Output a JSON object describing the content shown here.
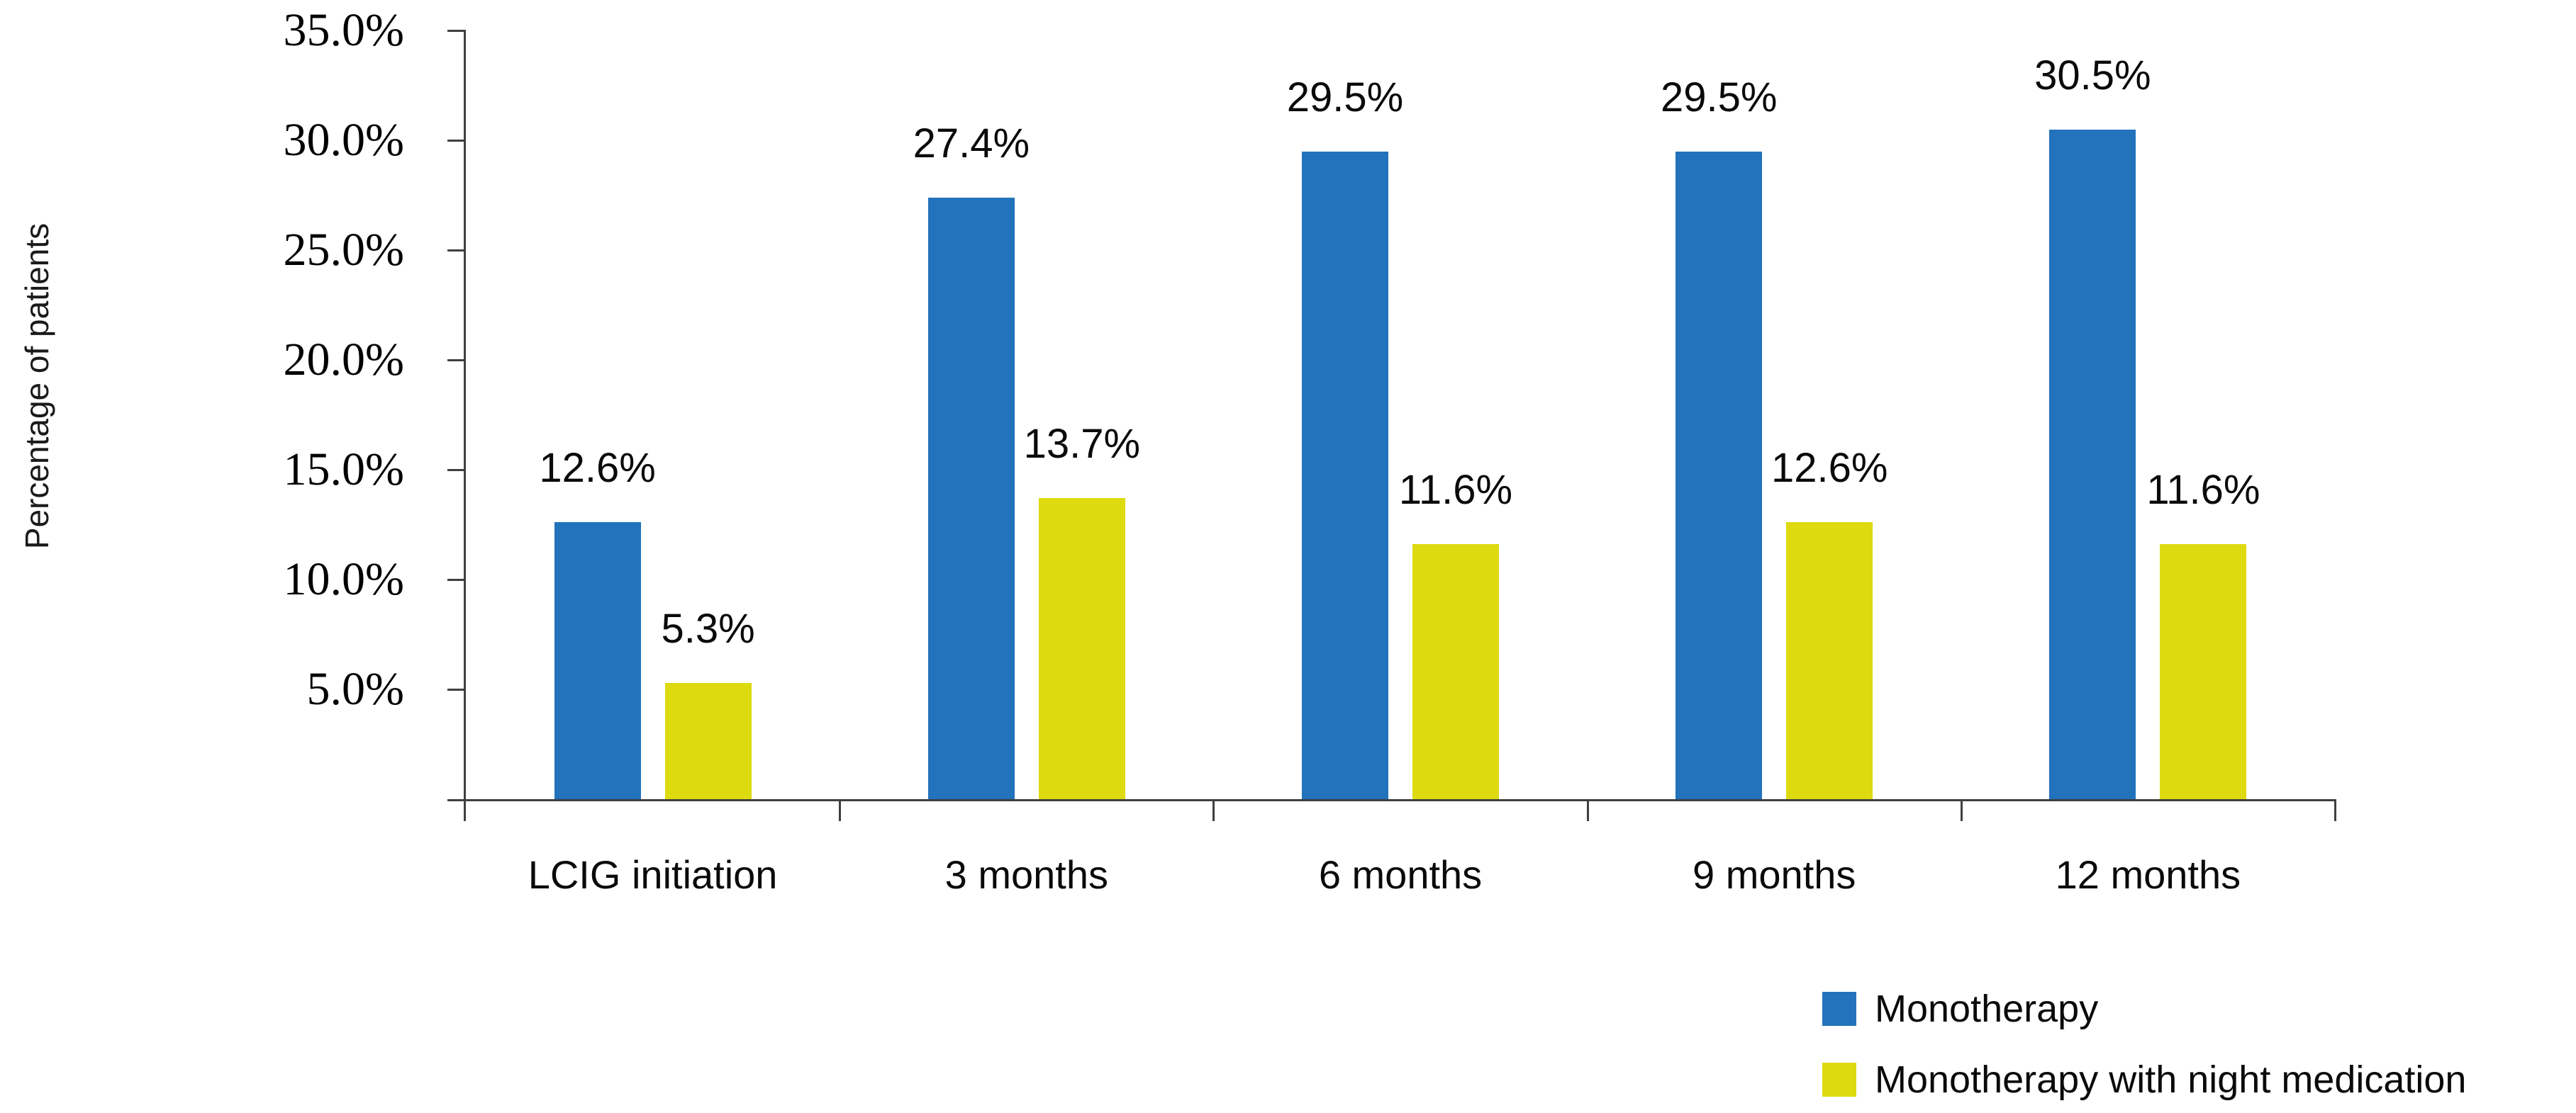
{
  "chart_data": {
    "type": "bar",
    "title": "",
    "ylabel": "Percentage of patients",
    "xlabel": "",
    "ylim": [
      0,
      35
    ],
    "grid": false,
    "legend_position": "bottom-right",
    "categories": [
      "LCIG initiation",
      "3 months",
      "6 months",
      "9 months",
      "12 months"
    ],
    "series": [
      {
        "name": "Monotherapy",
        "color": "#2272BC",
        "values": [
          12.6,
          27.4,
          29.5,
          29.5,
          30.5
        ],
        "labels": [
          "12.6%",
          "27.4%",
          "29.5%",
          "29.5%",
          "30.5%"
        ]
      },
      {
        "name": "Monotherapy with night medication",
        "color": "#DEDA10",
        "values": [
          5.3,
          13.7,
          11.6,
          12.6,
          11.6
        ],
        "labels": [
          "5.3%",
          "13.7%",
          "11.6%",
          "12.6%",
          "11.6%"
        ]
      }
    ],
    "y_ticks": [
      "35.0%",
      "30.0%",
      "25.0%",
      "20.0%",
      "15.0%",
      "10.0%",
      "5.0%"
    ],
    "y_tick_values": [
      35,
      30,
      25,
      20,
      15,
      10,
      5
    ]
  }
}
